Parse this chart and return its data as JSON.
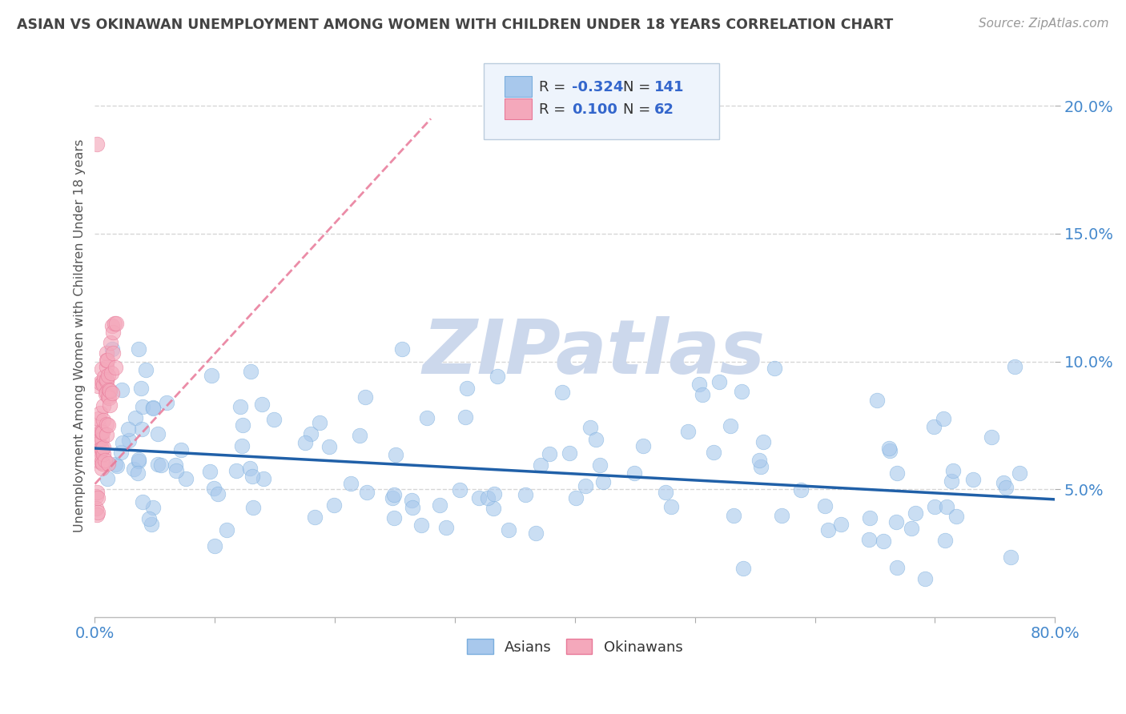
{
  "title": "ASIAN VS OKINAWAN UNEMPLOYMENT AMONG WOMEN WITH CHILDREN UNDER 18 YEARS CORRELATION CHART",
  "source": "Source: ZipAtlas.com",
  "ylabel": "Unemployment Among Women with Children Under 18 years",
  "xlim": [
    0.0,
    0.8
  ],
  "ylim": [
    0.0,
    0.22
  ],
  "xtick_positions": [
    0.0,
    0.1,
    0.2,
    0.3,
    0.4,
    0.5,
    0.6,
    0.7,
    0.8
  ],
  "xticklabels": [
    "0.0%",
    "",
    "",
    "",
    "",
    "",
    "",
    "",
    "80.0%"
  ],
  "ytick_positions": [
    0.05,
    0.1,
    0.15,
    0.2
  ],
  "ytick_labels": [
    "5.0%",
    "10.0%",
    "15.0%",
    "20.0%"
  ],
  "asian_R": -0.324,
  "asian_N": 141,
  "okinawan_R": 0.1,
  "okinawan_N": 62,
  "asian_color": "#a8c8ec",
  "asian_edge_color": "#7aaedd",
  "okinawan_color": "#f4a8bb",
  "okinawan_edge_color": "#e87898",
  "asian_line_color": "#2060a8",
  "okinawan_line_color": "#e87898",
  "watermark_text": "ZIPatlas",
  "watermark_color": "#ccd8ec",
  "background_color": "#ffffff",
  "grid_color": "#cccccc",
  "title_color": "#444444",
  "axis_label_color": "#555555",
  "tick_color": "#4488cc",
  "legend_bg_color": "#eef4fc",
  "legend_edge_color": "#bbccdd",
  "legend_text_color": "#333333",
  "legend_value_color": "#3366cc",
  "asian_line_start_y": 0.066,
  "asian_line_end_y": 0.046,
  "okinawan_line_x": [
    0.0,
    0.28
  ],
  "okinawan_line_y": [
    0.052,
    0.195
  ]
}
